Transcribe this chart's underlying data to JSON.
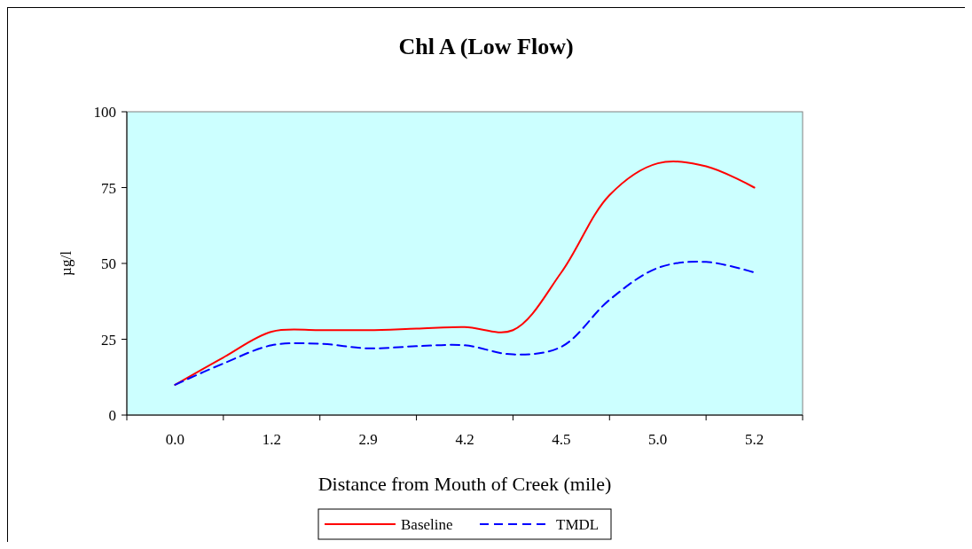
{
  "chart_data": {
    "type": "line",
    "title": "Chl A (Low Flow)",
    "xlabel": "Distance from Mouth of Creek (mile)",
    "ylabel": "µg/l",
    "categories": [
      "0.0",
      null,
      "1.2",
      null,
      "2.9",
      null,
      "4.2",
      null,
      "4.5",
      null,
      "5.0",
      null,
      "5.2"
    ],
    "series": [
      {
        "name": "Baseline",
        "color": "#ff0000",
        "line_style": "solid",
        "values": [
          10,
          19,
          27.5,
          28,
          28,
          28.5,
          29,
          28,
          47,
          72.5,
          83,
          82,
          75
        ]
      },
      {
        "name": "TMDL",
        "color": "#0000ff",
        "line_style": "dashed",
        "values": [
          10,
          17,
          23,
          23.5,
          22,
          22.7,
          23,
          20,
          22.5,
          38,
          48.5,
          50.5,
          47
        ]
      }
    ],
    "ylim": [
      0,
      100
    ],
    "yticks": [
      0,
      25,
      50,
      75,
      100
    ],
    "grid": false,
    "legend": "bottom"
  }
}
